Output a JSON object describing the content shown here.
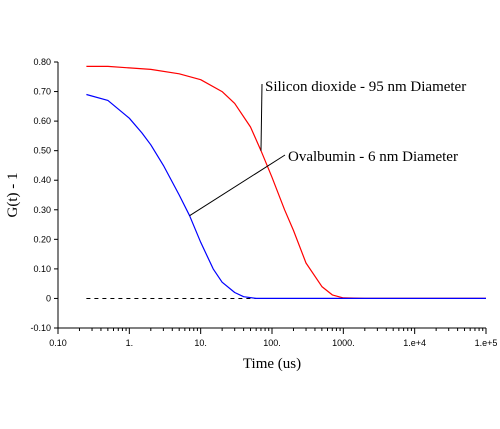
{
  "chart_data": {
    "type": "line",
    "title": "",
    "xlabel": "Time (us)",
    "ylabel": "G(t) - 1",
    "x_scale": "log",
    "xlim": [
      0.1,
      100000
    ],
    "ylim": [
      -0.1,
      0.8
    ],
    "x_ticks": [
      {
        "value": 0.1,
        "label": "0.10"
      },
      {
        "value": 1,
        "label": "1."
      },
      {
        "value": 10,
        "label": "10."
      },
      {
        "value": 100,
        "label": "100."
      },
      {
        "value": 1000,
        "label": "1000."
      },
      {
        "value": 10000,
        "label": "1.e+4"
      },
      {
        "value": 100000,
        "label": "1.e+5"
      }
    ],
    "y_ticks": [
      {
        "value": 0.8,
        "label": "0.80"
      },
      {
        "value": 0.7,
        "label": "0.70"
      },
      {
        "value": 0.6,
        "label": "0.60"
      },
      {
        "value": 0.5,
        "label": "0.50"
      },
      {
        "value": 0.4,
        "label": "0.40"
      },
      {
        "value": 0.3,
        "label": "0.30"
      },
      {
        "value": 0.2,
        "label": "0.20"
      },
      {
        "value": 0.1,
        "label": "0.10"
      },
      {
        "value": 0,
        "label": "0"
      },
      {
        "value": -0.1,
        "label": "-0.10"
      }
    ],
    "grid": false,
    "baseline": {
      "y": 0,
      "style": "dashed",
      "color": "#000000"
    },
    "series": [
      {
        "name": "Silicon dioxide - 95 nm Diameter",
        "color": "#ff0000",
        "x": [
          0.25,
          0.5,
          1,
          2,
          5,
          10,
          20,
          30,
          50,
          70,
          100,
          150,
          200,
          300,
          500,
          700,
          1000,
          2000,
          10000,
          100000
        ],
        "y": [
          0.785,
          0.785,
          0.78,
          0.775,
          0.76,
          0.74,
          0.7,
          0.66,
          0.58,
          0.5,
          0.41,
          0.3,
          0.23,
          0.12,
          0.04,
          0.012,
          0.002,
          0.0,
          0.0,
          0.0
        ]
      },
      {
        "name": "Ovalbumin - 6 nm Diameter",
        "color": "#0000ff",
        "x": [
          0.25,
          0.5,
          1,
          1.5,
          2,
          3,
          5,
          7,
          10,
          15,
          20,
          30,
          40,
          60,
          100,
          1000,
          10000,
          100000
        ],
        "y": [
          0.69,
          0.67,
          0.61,
          0.56,
          0.52,
          0.45,
          0.35,
          0.28,
          0.19,
          0.1,
          0.055,
          0.02,
          0.006,
          0.0,
          0.0,
          0.0,
          0.0,
          0.0
        ]
      }
    ],
    "annotations": [
      {
        "text": "Silicon dioxide - 95 nm Diameter",
        "series": 0,
        "point": [
          70,
          0.5
        ]
      },
      {
        "text": "Ovalbumin - 6 nm Diameter",
        "series": 1,
        "point": [
          7,
          0.28
        ]
      }
    ]
  }
}
